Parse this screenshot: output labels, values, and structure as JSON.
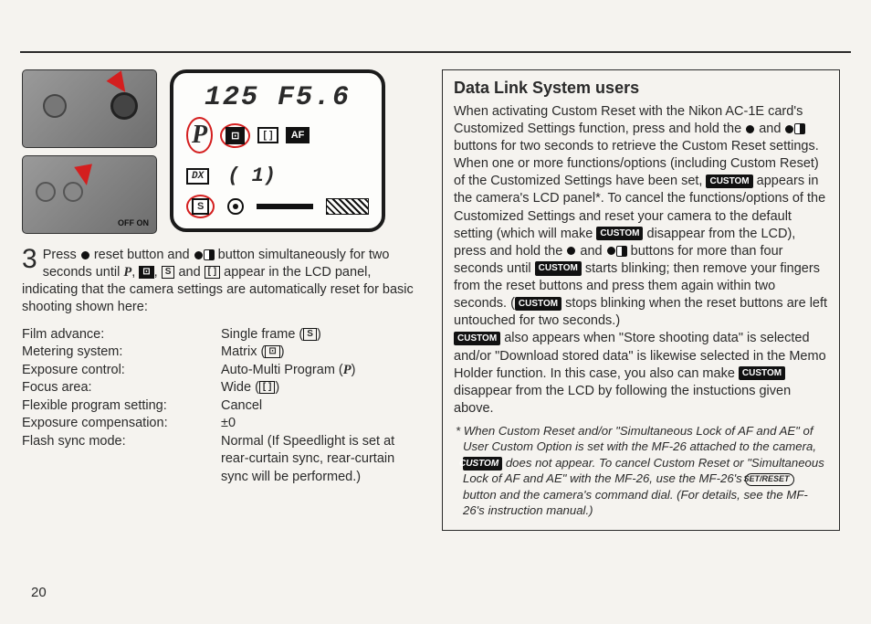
{
  "lcd": {
    "top_readout": "125  F5.6",
    "mode_letter": "P",
    "af_label": "AF",
    "bracket_box": "[  ]",
    "dx_label": "DX",
    "frame_counter": "(   1)",
    "s_label": "S"
  },
  "step": {
    "number": "3",
    "line1a": "Press ",
    "line1b": " reset button and ",
    "line1c": " button simultaneously for two seconds until ",
    "line1d": ", ",
    "line1e": " and ",
    "line1f": " appear in the LCD panel, indicating that the camera settings are automatically reset for basic shooting shown here:"
  },
  "settings": {
    "rows": [
      {
        "k": "Film advance:",
        "v": "Single frame (",
        "sym": "S",
        "v2": ")"
      },
      {
        "k": "Metering system:",
        "v": "Matrix (",
        "sym": "⊡",
        "v2": ")"
      },
      {
        "k": "Exposure control:",
        "v": "Auto-Multi Program (",
        "psym": "P",
        "v2": ")"
      },
      {
        "k": "Focus area:",
        "v": "Wide (",
        "sym": "[ ]",
        "v2": ")"
      },
      {
        "k": "Flexible program setting:",
        "v": "Cancel"
      },
      {
        "k": "Exposure compensation:",
        "v": "±0"
      },
      {
        "k": "Flash sync mode:",
        "v": "Normal (If Speedlight is set at rear-curtain sync, rear-curtain sync will be performed.)"
      }
    ]
  },
  "callout": {
    "title": "Data Link System users",
    "p1a": "When activating Custom Reset with the Nikon AC-1E card's Customized Settings function, press and hold the ",
    "p1b": " and ",
    "p1c": " buttons for two seconds to retrieve the Custom Reset settings.",
    "p2a": "When one or more functions/options (including Custom Reset) of the Customized Settings have been set, ",
    "p2b": " appears in the camera's LCD panel*. To cancel the functions/options of the Customized Settings and reset your camera to the default setting (which will make ",
    "p2c": " disappear from the LCD), press and hold the ",
    "p2d": " and ",
    "p2e": " buttons for more than four seconds until ",
    "p2f": " starts blinking; then remove your fingers from the reset buttons and press them again within two seconds. (",
    "p2g": " stops blinking when the reset buttons are left untouched for two seconds.)",
    "p3a": " also appears when \"Store shooting data\" is selected and/or \"Download stored data\" is likewise selected in the Memo Holder function. In this case, you also can make ",
    "p3b": " disappear from the LCD by following the instuctions given above.",
    "custom_label": "CUSTOM",
    "footnote": "* When Custom Reset and/or \"Simultaneous Lock of AF and AE\" of User Custom Option is set with the MF-26 attached to the camera, ",
    "footnote2": " does not appear. To cancel Custom Reset or \"Simultaneous Lock of AF and AE\" with the MF-26, use the MF-26's ",
    "footnote3": " button and the camera's command dial. (For details, see the MF-26's instruction manual.)",
    "set_reset": "SET/RESET"
  },
  "thumb2_label": "OFF ON",
  "page_number": "20"
}
